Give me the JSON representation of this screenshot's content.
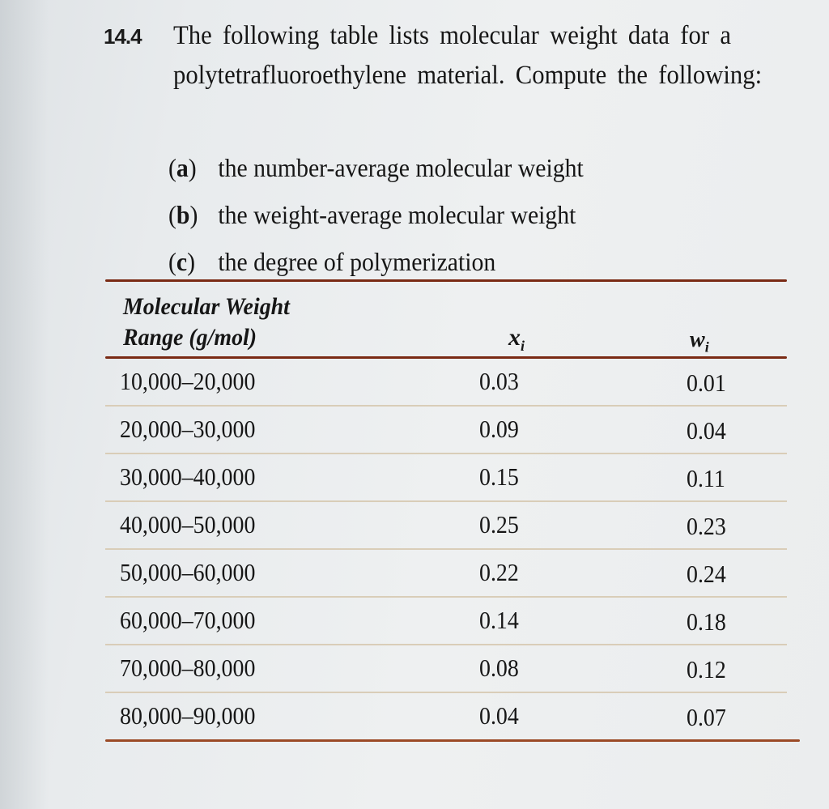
{
  "problem": {
    "number": "14.4",
    "statement": "The following table lists molecular weight data for a polytetrafluoroethylene material. Compute the following:",
    "parts": [
      {
        "label": "a",
        "text": "the number-average molecular weight"
      },
      {
        "label": "b",
        "text": "the weight-average molecular weight"
      },
      {
        "label": "c",
        "text": "the degree of polymerization"
      }
    ]
  },
  "table": {
    "headers": {
      "range_line1": "Molecular Weight",
      "range_line2": "Range (g/mol)",
      "x": "x",
      "x_sub": "i",
      "w": "w",
      "w_sub": "i"
    },
    "rows": [
      {
        "range": "10,000–20,000",
        "x": "0.03",
        "w": "0.01"
      },
      {
        "range": "20,000–30,000",
        "x": "0.09",
        "w": "0.04"
      },
      {
        "range": "30,000–40,000",
        "x": "0.15",
        "w": "0.11"
      },
      {
        "range": "40,000–50,000",
        "x": "0.25",
        "w": "0.23"
      },
      {
        "range": "50,000–60,000",
        "x": "0.22",
        "w": "0.24"
      },
      {
        "range": "60,000–70,000",
        "x": "0.14",
        "w": "0.18"
      },
      {
        "range": "70,000–80,000",
        "x": "0.08",
        "w": "0.12"
      },
      {
        "range": "80,000–90,000",
        "x": "0.04",
        "w": "0.07"
      }
    ]
  },
  "colors": {
    "rule": "#7a2a14",
    "row_divider": "#d9cdb8",
    "paper": "#eceef0",
    "ink": "#161616"
  }
}
